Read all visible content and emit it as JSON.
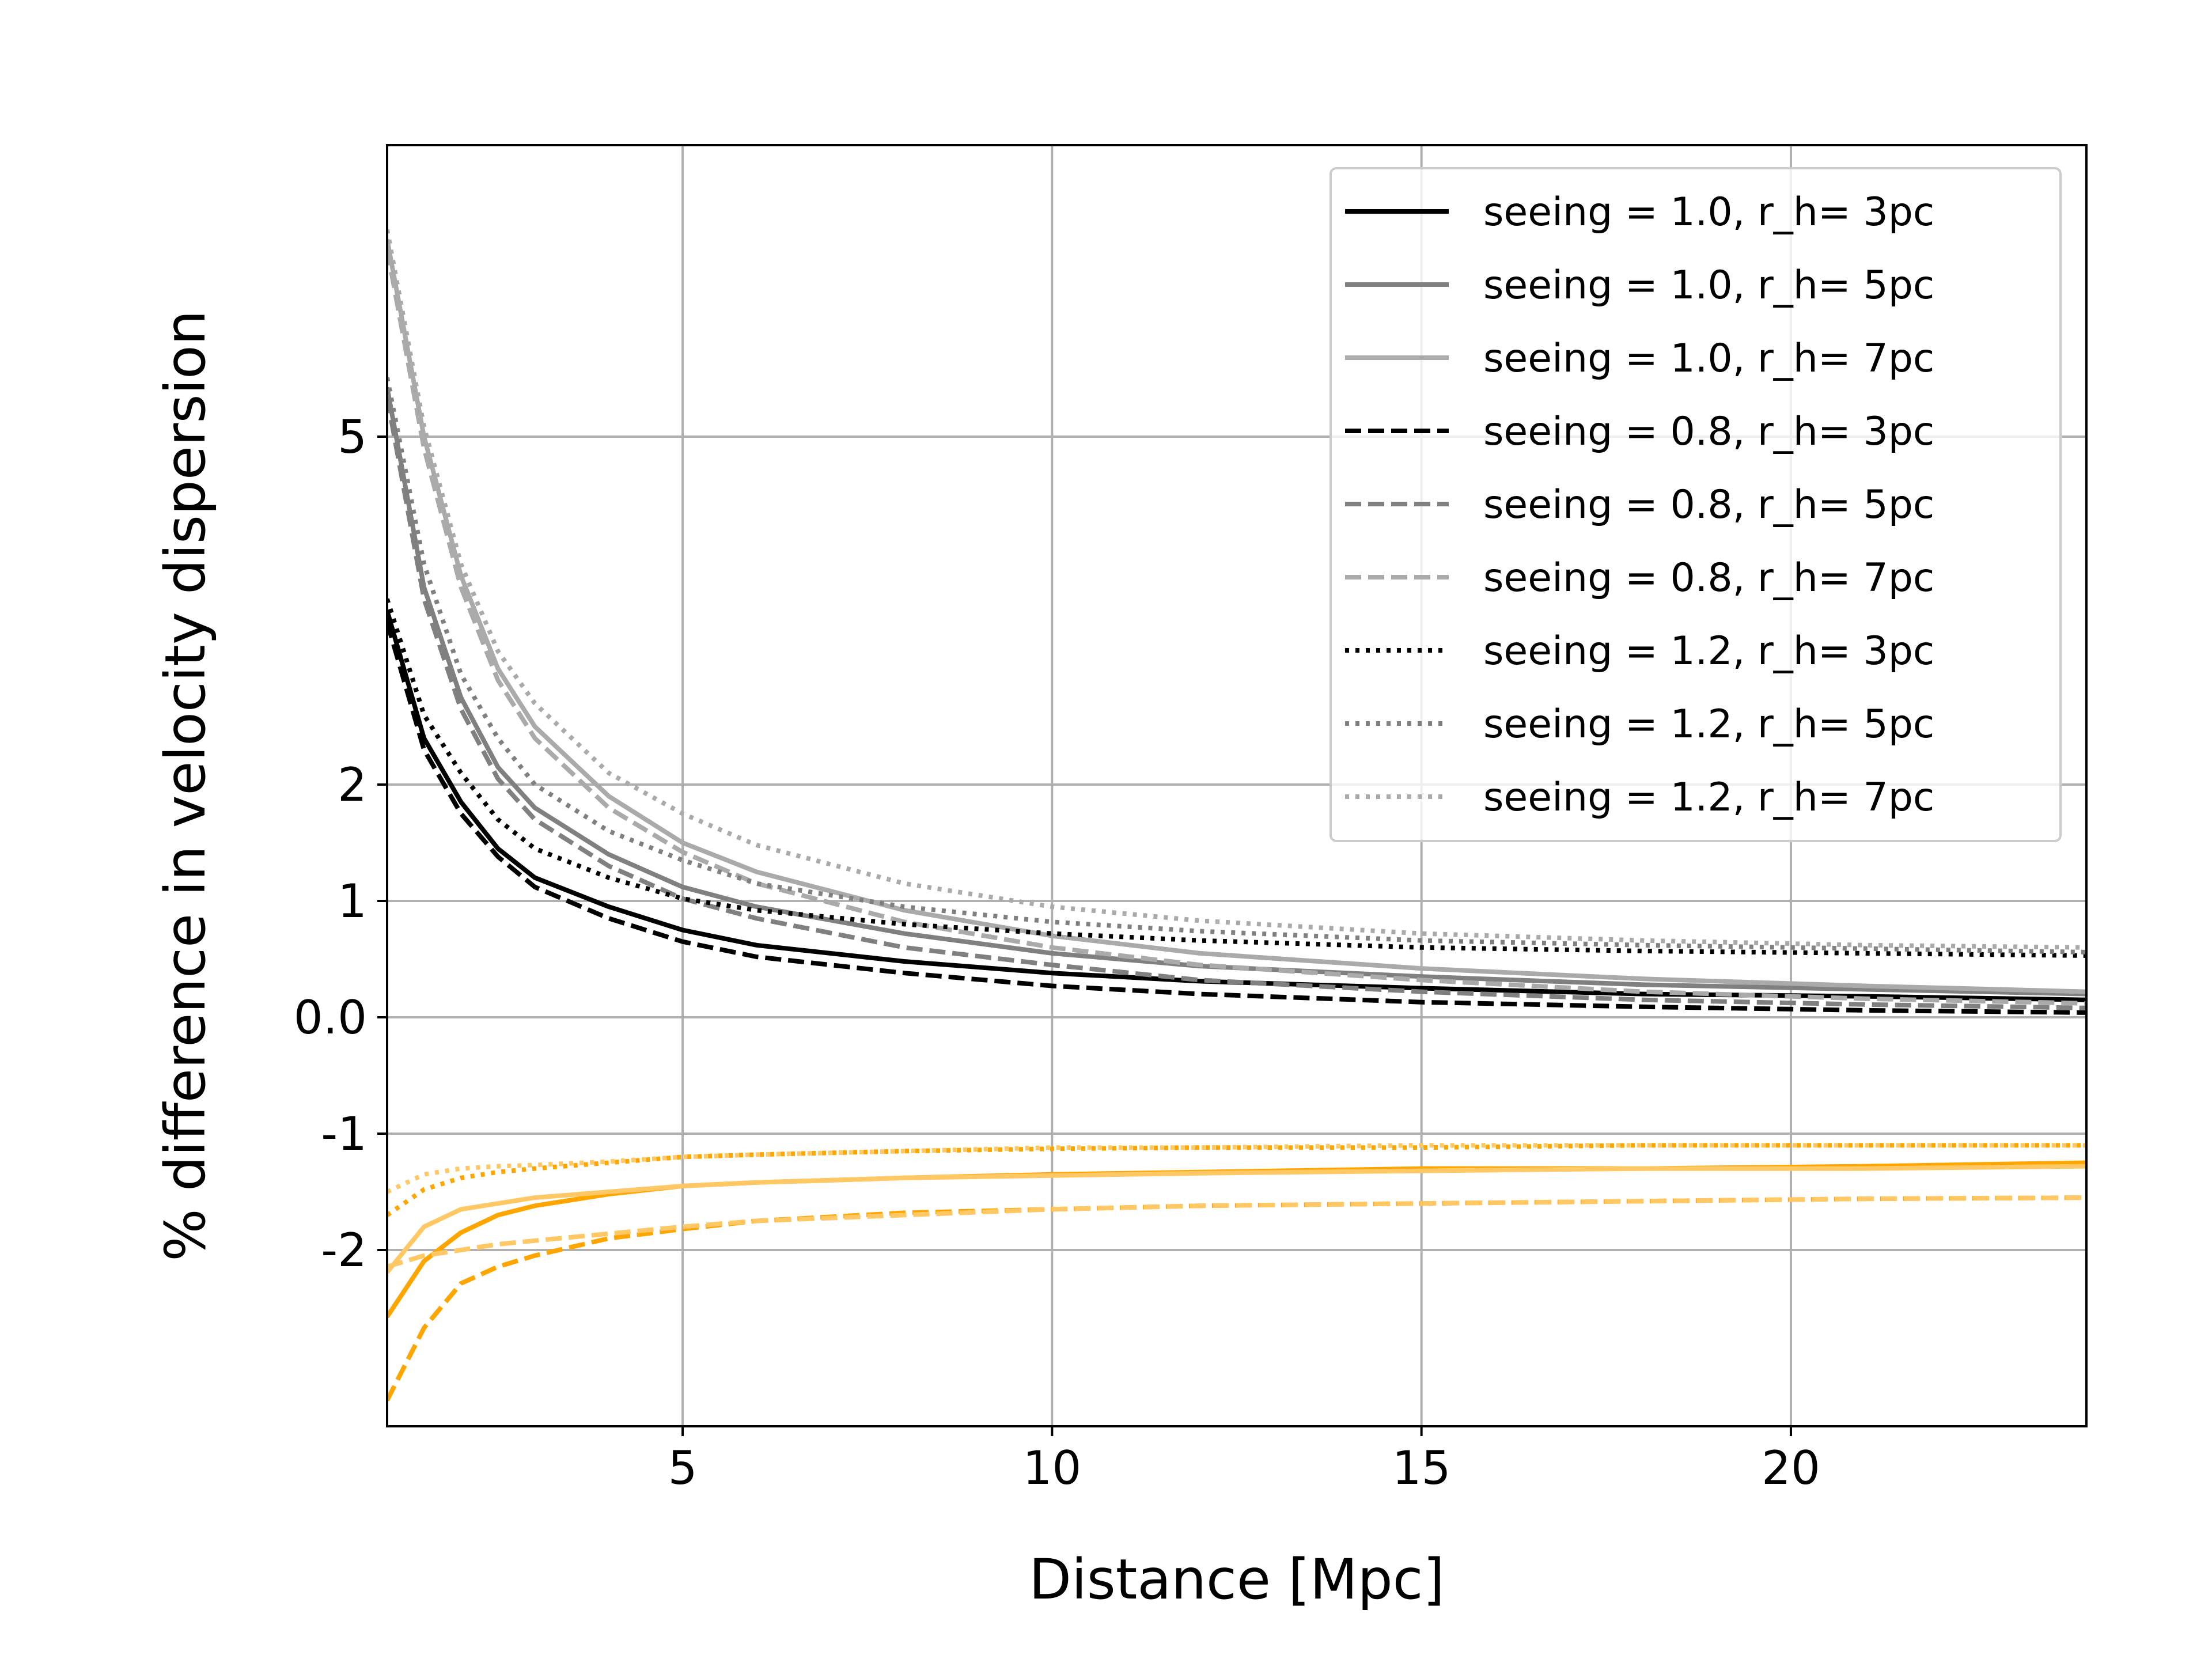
{
  "chart_data": {
    "type": "line",
    "title": "",
    "xlabel": "Distance [Mpc]",
    "ylabel": "% difference in velocity dispersion",
    "xlim": [
      1,
      24
    ],
    "ylim": [
      -3.5,
      7.5
    ],
    "grid": true,
    "legend_position": "top-right",
    "xticks": [
      5,
      10,
      15,
      20
    ],
    "xtick_labels": [
      "5",
      "10",
      "15",
      "20"
    ],
    "yticks": [
      -2,
      -1,
      0,
      1,
      2,
      5
    ],
    "ytick_labels": [
      "-2",
      "-1",
      "0.0",
      "1",
      "2",
      "5"
    ],
    "x": [
      1,
      1.5,
      2,
      2.5,
      3,
      4,
      5,
      6,
      8,
      10,
      12,
      15,
      18,
      21,
      24
    ],
    "series": [
      {
        "name": "seeing = 1.0, r_h= 3pc",
        "color": "#000000",
        "dash": "solid",
        "group": "positive",
        "values": [
          3.5,
          2.4,
          1.85,
          1.45,
          1.2,
          0.95,
          0.75,
          0.62,
          0.48,
          0.38,
          0.31,
          0.25,
          0.2,
          0.18,
          0.15
        ]
      },
      {
        "name": "seeing = 1.0, r_h= 5pc",
        "color": "#808080",
        "dash": "solid",
        "group": "positive",
        "values": [
          5.5,
          3.7,
          2.75,
          2.15,
          1.8,
          1.4,
          1.12,
          0.95,
          0.72,
          0.55,
          0.44,
          0.35,
          0.28,
          0.24,
          0.2
        ]
      },
      {
        "name": "seeing = 1.0, r_h= 7pc",
        "color": "#aaaaaa",
        "dash": "solid",
        "group": "positive",
        "values": [
          7.0,
          5.0,
          3.8,
          3.0,
          2.5,
          1.9,
          1.5,
          1.25,
          0.92,
          0.7,
          0.55,
          0.42,
          0.33,
          0.27,
          0.22
        ]
      },
      {
        "name": "seeing = 0.8, r_h= 3pc",
        "color": "#000000",
        "dash": "dashed",
        "group": "positive",
        "values": [
          3.4,
          2.3,
          1.75,
          1.38,
          1.12,
          0.85,
          0.65,
          0.52,
          0.38,
          0.27,
          0.2,
          0.13,
          0.09,
          0.06,
          0.04
        ]
      },
      {
        "name": "seeing = 0.8, r_h= 5pc",
        "color": "#808080",
        "dash": "dashed",
        "group": "positive",
        "values": [
          5.4,
          3.6,
          2.65,
          2.05,
          1.7,
          1.3,
          1.02,
          0.85,
          0.6,
          0.45,
          0.32,
          0.22,
          0.15,
          0.11,
          0.08
        ]
      },
      {
        "name": "seeing = 0.8, r_h= 7pc",
        "color": "#aaaaaa",
        "dash": "dashed",
        "group": "positive",
        "values": [
          6.9,
          4.9,
          3.7,
          2.9,
          2.4,
          1.8,
          1.42,
          1.15,
          0.82,
          0.6,
          0.45,
          0.32,
          0.22,
          0.16,
          0.12
        ]
      },
      {
        "name": "seeing = 1.2, r_h= 3pc",
        "color": "#000000",
        "dash": "dotted",
        "group": "positive",
        "values": [
          3.6,
          2.6,
          2.1,
          1.7,
          1.45,
          1.2,
          1.02,
          0.92,
          0.8,
          0.72,
          0.66,
          0.6,
          0.57,
          0.55,
          0.53
        ]
      },
      {
        "name": "seeing = 1.2, r_h= 5pc",
        "color": "#808080",
        "dash": "dotted",
        "group": "positive",
        "values": [
          5.6,
          3.9,
          2.95,
          2.4,
          2.0,
          1.6,
          1.35,
          1.15,
          0.95,
          0.82,
          0.74,
          0.66,
          0.62,
          0.59,
          0.56
        ]
      },
      {
        "name": "seeing = 1.2, r_h= 7pc",
        "color": "#aaaaaa",
        "dash": "dotted",
        "group": "positive",
        "values": [
          7.1,
          5.1,
          3.9,
          3.15,
          2.7,
          2.1,
          1.75,
          1.48,
          1.15,
          0.95,
          0.83,
          0.72,
          0.66,
          0.62,
          0.6
        ]
      }
    ],
    "orange_series": [
      {
        "color": "#ffa500",
        "dash": "solid",
        "values": [
          -2.6,
          -2.1,
          -1.85,
          -1.7,
          -1.62,
          -1.52,
          -1.45,
          -1.42,
          -1.38,
          -1.35,
          -1.33,
          -1.3,
          -1.3,
          -1.28,
          -1.25
        ]
      },
      {
        "color": "#ffa500",
        "dash": "dashed",
        "values": [
          -3.35,
          -2.7,
          -2.3,
          -2.15,
          -2.05,
          -1.9,
          -1.82,
          -1.75,
          -1.68,
          -1.65,
          -1.62,
          -1.6,
          -1.58,
          -1.56,
          -1.55
        ]
      },
      {
        "color": "#ffa500",
        "dash": "dotted",
        "values": [
          -1.7,
          -1.48,
          -1.38,
          -1.33,
          -1.3,
          -1.25,
          -1.2,
          -1.18,
          -1.15,
          -1.13,
          -1.12,
          -1.12,
          -1.1,
          -1.1,
          -1.1
        ]
      },
      {
        "color": "#ffc864",
        "dash": "solid",
        "values": [
          -2.2,
          -1.8,
          -1.65,
          -1.6,
          -1.55,
          -1.5,
          -1.45,
          -1.42,
          -1.38,
          -1.36,
          -1.34,
          -1.32,
          -1.3,
          -1.3,
          -1.28
        ]
      },
      {
        "color": "#ffc864",
        "dash": "dashed",
        "values": [
          -2.15,
          -2.05,
          -2.0,
          -1.95,
          -1.92,
          -1.86,
          -1.8,
          -1.75,
          -1.7,
          -1.65,
          -1.62,
          -1.6,
          -1.58,
          -1.56,
          -1.55
        ]
      },
      {
        "color": "#ffc864",
        "dash": "dotted",
        "values": [
          -1.5,
          -1.35,
          -1.3,
          -1.28,
          -1.27,
          -1.24,
          -1.2,
          -1.18,
          -1.15,
          -1.12,
          -1.12,
          -1.1,
          -1.1,
          -1.1,
          -1.1
        ]
      }
    ]
  }
}
